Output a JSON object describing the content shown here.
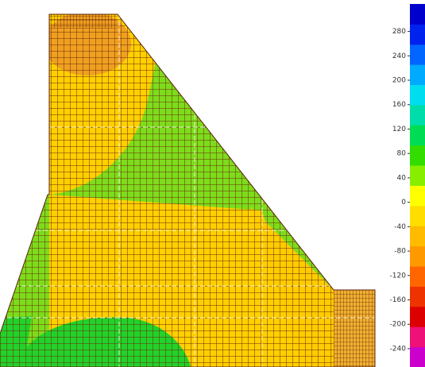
{
  "chart_data": {
    "type": "contour",
    "colorbar": {
      "lim": [
        -270,
        325
      ],
      "ticks": [
        280,
        240,
        200,
        160,
        120,
        80,
        40,
        0,
        -40,
        -80,
        -120,
        -160,
        -200,
        -240
      ],
      "colors": [
        "#cc00cc",
        "#ee1177",
        "#dd0000",
        "#ee3300",
        "#ff6600",
        "#ff9900",
        "#ffbb00",
        "#ffdd00",
        "#ffff00",
        "#88ee00",
        "#33dd00",
        "#00dd55",
        "#00ddaa",
        "#00ddee",
        "#00aaff",
        "#0066ff",
        "#0022ee",
        "#0000cc"
      ]
    }
  }
}
